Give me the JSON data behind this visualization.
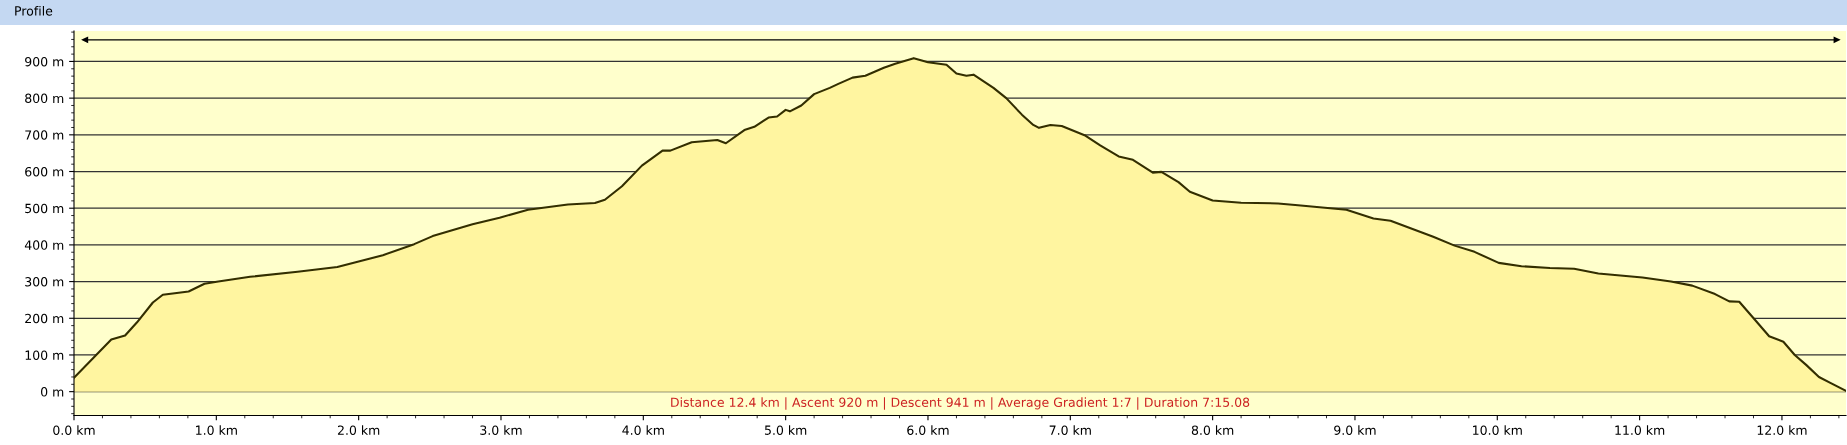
{
  "chart_data": {
    "type": "area",
    "title": "Profile",
    "annotations": [
      "Distance 12.4 km | Ascent 920 m | Descent 941 m | Average Gradient 1:7 | Duration 7:15.08"
    ],
    "x": [
      0,
      0.262,
      0.359,
      0.443,
      0.554,
      0.624,
      0.722,
      0.805,
      0.917,
      1.014,
      1.237,
      1.571,
      1.85,
      2.17,
      2.39,
      2.52,
      2.8,
      2.99,
      3.19,
      3.47,
      3.66,
      3.73,
      3.85,
      3.99,
      4.135,
      4.19,
      4.34,
      4.52,
      4.58,
      4.71,
      4.78,
      4.88,
      4.94,
      5.0,
      5.03,
      5.11,
      5.2,
      5.31,
      5.37,
      5.47,
      5.56,
      5.69,
      5.77,
      5.9,
      6.0,
      6.13,
      6.2,
      6.27,
      6.32,
      6.46,
      6.55,
      6.66,
      6.74,
      6.78,
      6.86,
      6.94,
      7.1,
      7.21,
      7.34,
      7.44,
      7.58,
      7.64,
      7.76,
      7.84,
      8.0,
      8.2,
      8.46,
      8.6,
      8.94,
      9.13,
      9.25,
      9.55,
      9.7,
      9.84,
      10.01,
      10.17,
      10.37,
      10.54,
      10.71,
      11.02,
      11.22,
      11.37,
      11.53,
      11.63,
      11.7,
      11.81,
      11.91,
      12.01,
      12.09,
      12.17,
      12.26,
      12.34,
      12.45
    ],
    "series": [
      {
        "color": "#332e00",
        "values": [
          38,
          142,
          153,
          189,
          243,
          264,
          269,
          273,
          294,
          300,
          313,
          327,
          340,
          372,
          402,
          424,
          456,
          474,
          496,
          510,
          514,
          523,
          560,
          616,
          657,
          657,
          680,
          686,
          677,
          713,
          722,
          747,
          750,
          768,
          764,
          780,
          811,
          828,
          839,
          856,
          861,
          883,
          894,
          909,
          898,
          891,
          867,
          861,
          864,
          828,
          800,
          755,
          727,
          719,
          727,
          724,
          699,
          671,
          641,
          632,
          597,
          599,
          571,
          545,
          521,
          515,
          513,
          508,
          496,
          472,
          466,
          422,
          398,
          381,
          351,
          342,
          337,
          335,
          322,
          311,
          300,
          289,
          266,
          246,
          245,
          196,
          151,
          136,
          100,
          73,
          40,
          24,
          2
        ]
      }
    ],
    "xlim": [
      0,
      12.45
    ],
    "ylim": [
      -65,
      983
    ],
    "xticks": [
      {
        "value": 0,
        "label": "0.0 km"
      },
      {
        "value": 1,
        "label": "1.0 km"
      },
      {
        "value": 2,
        "label": "2.0 km"
      },
      {
        "value": 3,
        "label": "3.0 km"
      },
      {
        "value": 4,
        "label": "4.0 km"
      },
      {
        "value": 5,
        "label": "5.0 km"
      },
      {
        "value": 6,
        "label": "6.0 km"
      },
      {
        "value": 7,
        "label": "7.0 km"
      },
      {
        "value": 8,
        "label": "8.0 km"
      },
      {
        "value": 9,
        "label": "9.0 km"
      },
      {
        "value": 10,
        "label": "10.0 km"
      },
      {
        "value": 11,
        "label": "11.0 km"
      },
      {
        "value": 12,
        "label": "12.0 km"
      }
    ],
    "yticks": [
      {
        "value": 0,
        "label": "0 m"
      },
      {
        "value": 100,
        "label": "100 m"
      },
      {
        "value": 200,
        "label": "200 m"
      },
      {
        "value": 300,
        "label": "300 m"
      },
      {
        "value": 400,
        "label": "400 m"
      },
      {
        "value": 500,
        "label": "500 m"
      },
      {
        "value": 600,
        "label": "600 m"
      },
      {
        "value": 700,
        "label": "700 m"
      },
      {
        "value": 800,
        "label": "800 m"
      },
      {
        "value": 900,
        "label": "900 m"
      }
    ],
    "grid": "y"
  }
}
